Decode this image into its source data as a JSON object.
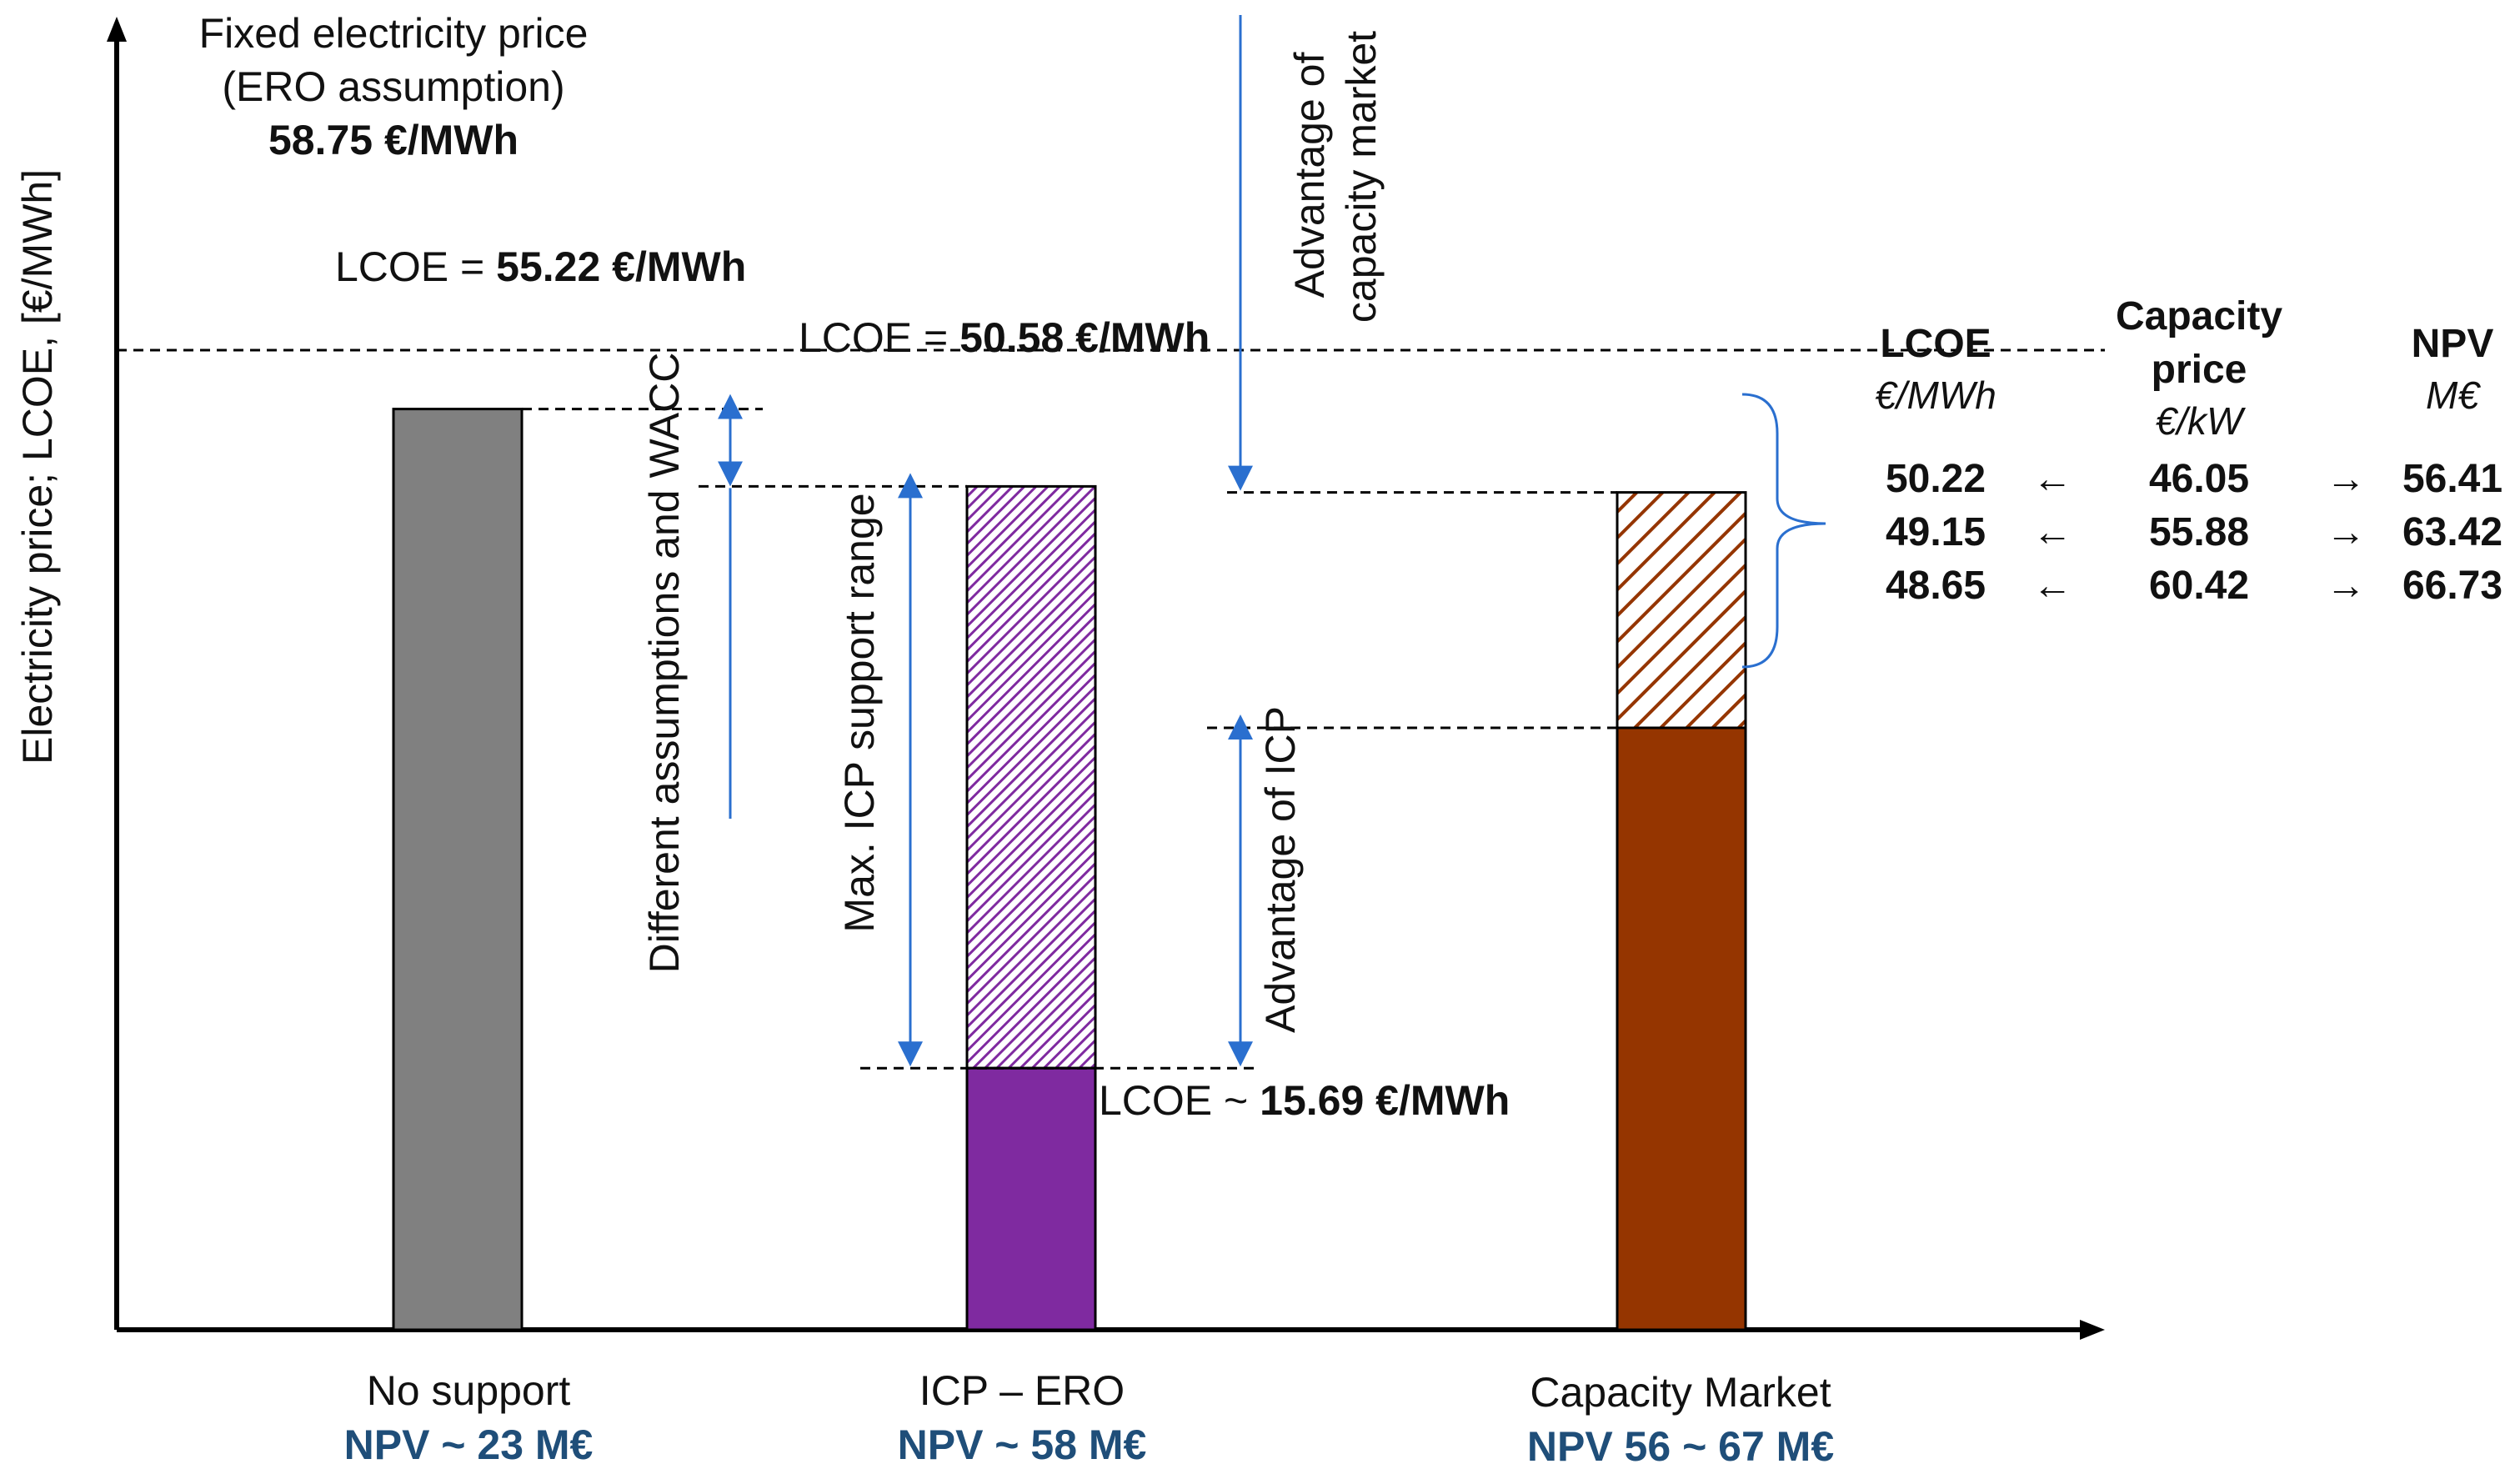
{
  "chart_data": {
    "type": "bar",
    "ylabel": "Electricity price; LCOE, [€/MWh]",
    "ylim": [
      0,
      62
    ],
    "fixed_price": {
      "line1": "Fixed electricity price",
      "line2": "(ERO assumption)",
      "value_text": "58.75 €/MWh",
      "value": 58.75
    },
    "categories": [
      "No support",
      "ICP – ERO",
      "Capacity Market"
    ],
    "npv_labels": [
      "NPV ~ 23 M€",
      "NPV ~ 58 M€",
      "NPV 56 ~ 67 M€"
    ],
    "bars": [
      {
        "name": "No support",
        "solid": 55.22,
        "hatched_top": null,
        "color": "#808080"
      },
      {
        "name": "ICP – ERO",
        "solid": 15.69,
        "hatched_top": 50.58,
        "color": "#7f2aa0"
      },
      {
        "name": "Capacity Market",
        "solid": 36.1,
        "hatched_top": 50.22,
        "color": "#953500"
      }
    ],
    "annotations": {
      "lcoe_no_support_prefix": "LCOE = ",
      "lcoe_no_support_value": "55.22 €/MWh",
      "lcoe_icp_prefix": "LCOE = ",
      "lcoe_icp_value": "50.58 €/MWh",
      "lcoe_low_prefix": "LCOE ~ ",
      "lcoe_low_value": "15.69 €/MWh",
      "diff_assumptions": "Different assumptions and WACC",
      "max_icp_range": "Max. ICP support range",
      "adv_capacity_1": "Advantage of",
      "adv_capacity_2": "capacity market",
      "adv_icp": "Advantage of ICP"
    },
    "table": {
      "headers": [
        {
          "title": [
            "LCOE"
          ],
          "unit": "€/MWh"
        },
        {
          "title": [
            "Capacity",
            "price"
          ],
          "unit": "€/kW"
        },
        {
          "title": [
            "NPV"
          ],
          "unit": "M€"
        }
      ],
      "arrow_left": "←",
      "arrow_right": "→",
      "rows": [
        {
          "lcoe": "50.22",
          "capacity_price": "46.05",
          "npv": "56.41"
        },
        {
          "lcoe": "49.15",
          "capacity_price": "55.88",
          "npv": "63.42"
        },
        {
          "lcoe": "48.65",
          "capacity_price": "60.42",
          "npv": "66.73"
        }
      ]
    }
  }
}
